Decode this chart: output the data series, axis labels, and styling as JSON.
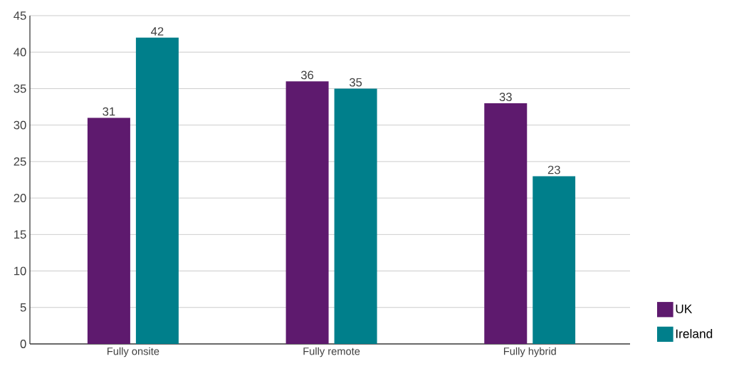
{
  "chart_data": {
    "type": "bar",
    "categories": [
      "Fully onsite",
      "Fully remote",
      "Fully hybrid"
    ],
    "series": [
      {
        "name": "UK",
        "color": "#5e1a6e",
        "values": [
          31,
          36,
          33
        ]
      },
      {
        "name": "Ireland",
        "color": "#007f8b",
        "values": [
          42,
          35,
          23
        ]
      }
    ],
    "ylim": [
      0,
      45
    ],
    "yticks": [
      0,
      5,
      10,
      15,
      20,
      25,
      30,
      35,
      40,
      45
    ],
    "grid": "y",
    "legend": "bottom right",
    "data_labels": true
  }
}
